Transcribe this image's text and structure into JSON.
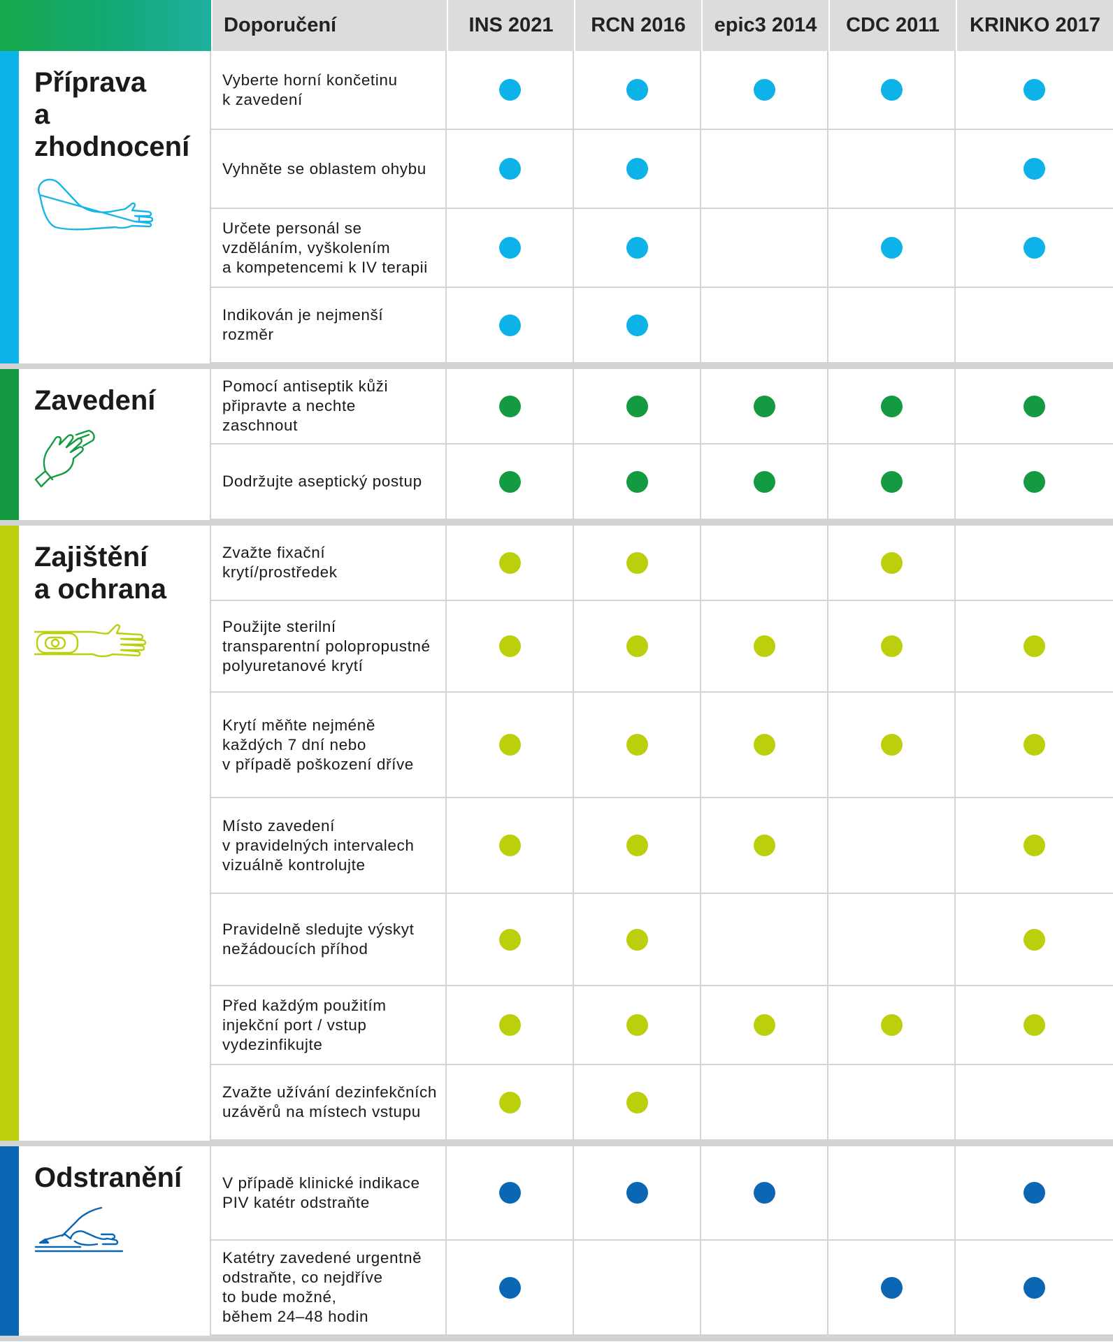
{
  "header": {
    "recommendation_label": "Doporučení",
    "guidelines": [
      "INS 2021",
      "RCN 2016",
      "epic3 2014",
      "CDC 2011",
      "KRINKO 2017"
    ]
  },
  "sections": [
    {
      "title": "Příprava\na\nzhodnocení",
      "icon": "arm-icon",
      "color": "#0db3e8",
      "rows": [
        {
          "text": "Vyberte horní končetinu\nk zavedení",
          "marks": [
            true,
            true,
            true,
            true,
            true
          ]
        },
        {
          "text": "Vyhněte se oblastem ohybu",
          "marks": [
            true,
            true,
            false,
            false,
            true
          ]
        },
        {
          "text": "Určete personál se\nvzděláním, vyškolením\na kompetencemi k IV terapii",
          "marks": [
            true,
            true,
            false,
            true,
            true
          ]
        },
        {
          "text": "Indikován je nejmenší\nrozměr",
          "marks": [
            true,
            true,
            false,
            false,
            false
          ]
        }
      ]
    },
    {
      "title": "Zavedení",
      "icon": "gloved-hand-icon",
      "color": "#149a40",
      "rows": [
        {
          "text": "Pomocí antiseptik kůži\npřipravte a nechte\nzaschnout",
          "marks": [
            true,
            true,
            true,
            true,
            true
          ]
        },
        {
          "text": "Dodržujte aseptický postup",
          "marks": [
            true,
            true,
            true,
            true,
            true
          ]
        }
      ]
    },
    {
      "title": "Zajištění\na ochrana",
      "icon": "secured-catheter-arm-icon",
      "color": "#bccf0d",
      "rows": [
        {
          "text": "Zvažte fixační\nkrytí/prostředek",
          "marks": [
            true,
            true,
            false,
            true,
            false
          ]
        },
        {
          "text": "Použijte sterilní\ntransparentní polopropustné\npolyuretanové krytí",
          "marks": [
            true,
            true,
            true,
            true,
            true
          ]
        },
        {
          "text": "Krytí měňte nejméně\nkaždých 7 dní nebo\nv případě poškození dříve",
          "marks": [
            true,
            true,
            true,
            true,
            true
          ]
        },
        {
          "text": "Místo zavedení\nv pravidelných intervalech\nvizuálně kontrolujte",
          "marks": [
            true,
            true,
            true,
            false,
            true
          ]
        },
        {
          "text": "Pravidelně sledujte výskyt\nnežádoucích příhod",
          "marks": [
            true,
            true,
            false,
            false,
            true
          ]
        },
        {
          "text": "Před každým použitím\ninjekční port / vstup\nvydezinfikujte",
          "marks": [
            true,
            true,
            true,
            true,
            true
          ]
        },
        {
          "text": "Zvažte užívání dezinfekčních\nuzávěrů  na místech vstupu",
          "marks": [
            true,
            true,
            false,
            false,
            false
          ]
        }
      ]
    },
    {
      "title": "Odstranění",
      "icon": "catheter-removal-icon",
      "color": "#0b66b3",
      "rows": [
        {
          "text": "V případě klinické indikace\nPIV katétr odstraňte",
          "marks": [
            true,
            true,
            true,
            false,
            true
          ]
        },
        {
          "text": "Katétry zavedené urgentně\nodstraňte, co nejdříve\nto bude možné,\nběhem 24–48 hodin",
          "marks": [
            true,
            false,
            false,
            true,
            true
          ]
        }
      ]
    }
  ]
}
